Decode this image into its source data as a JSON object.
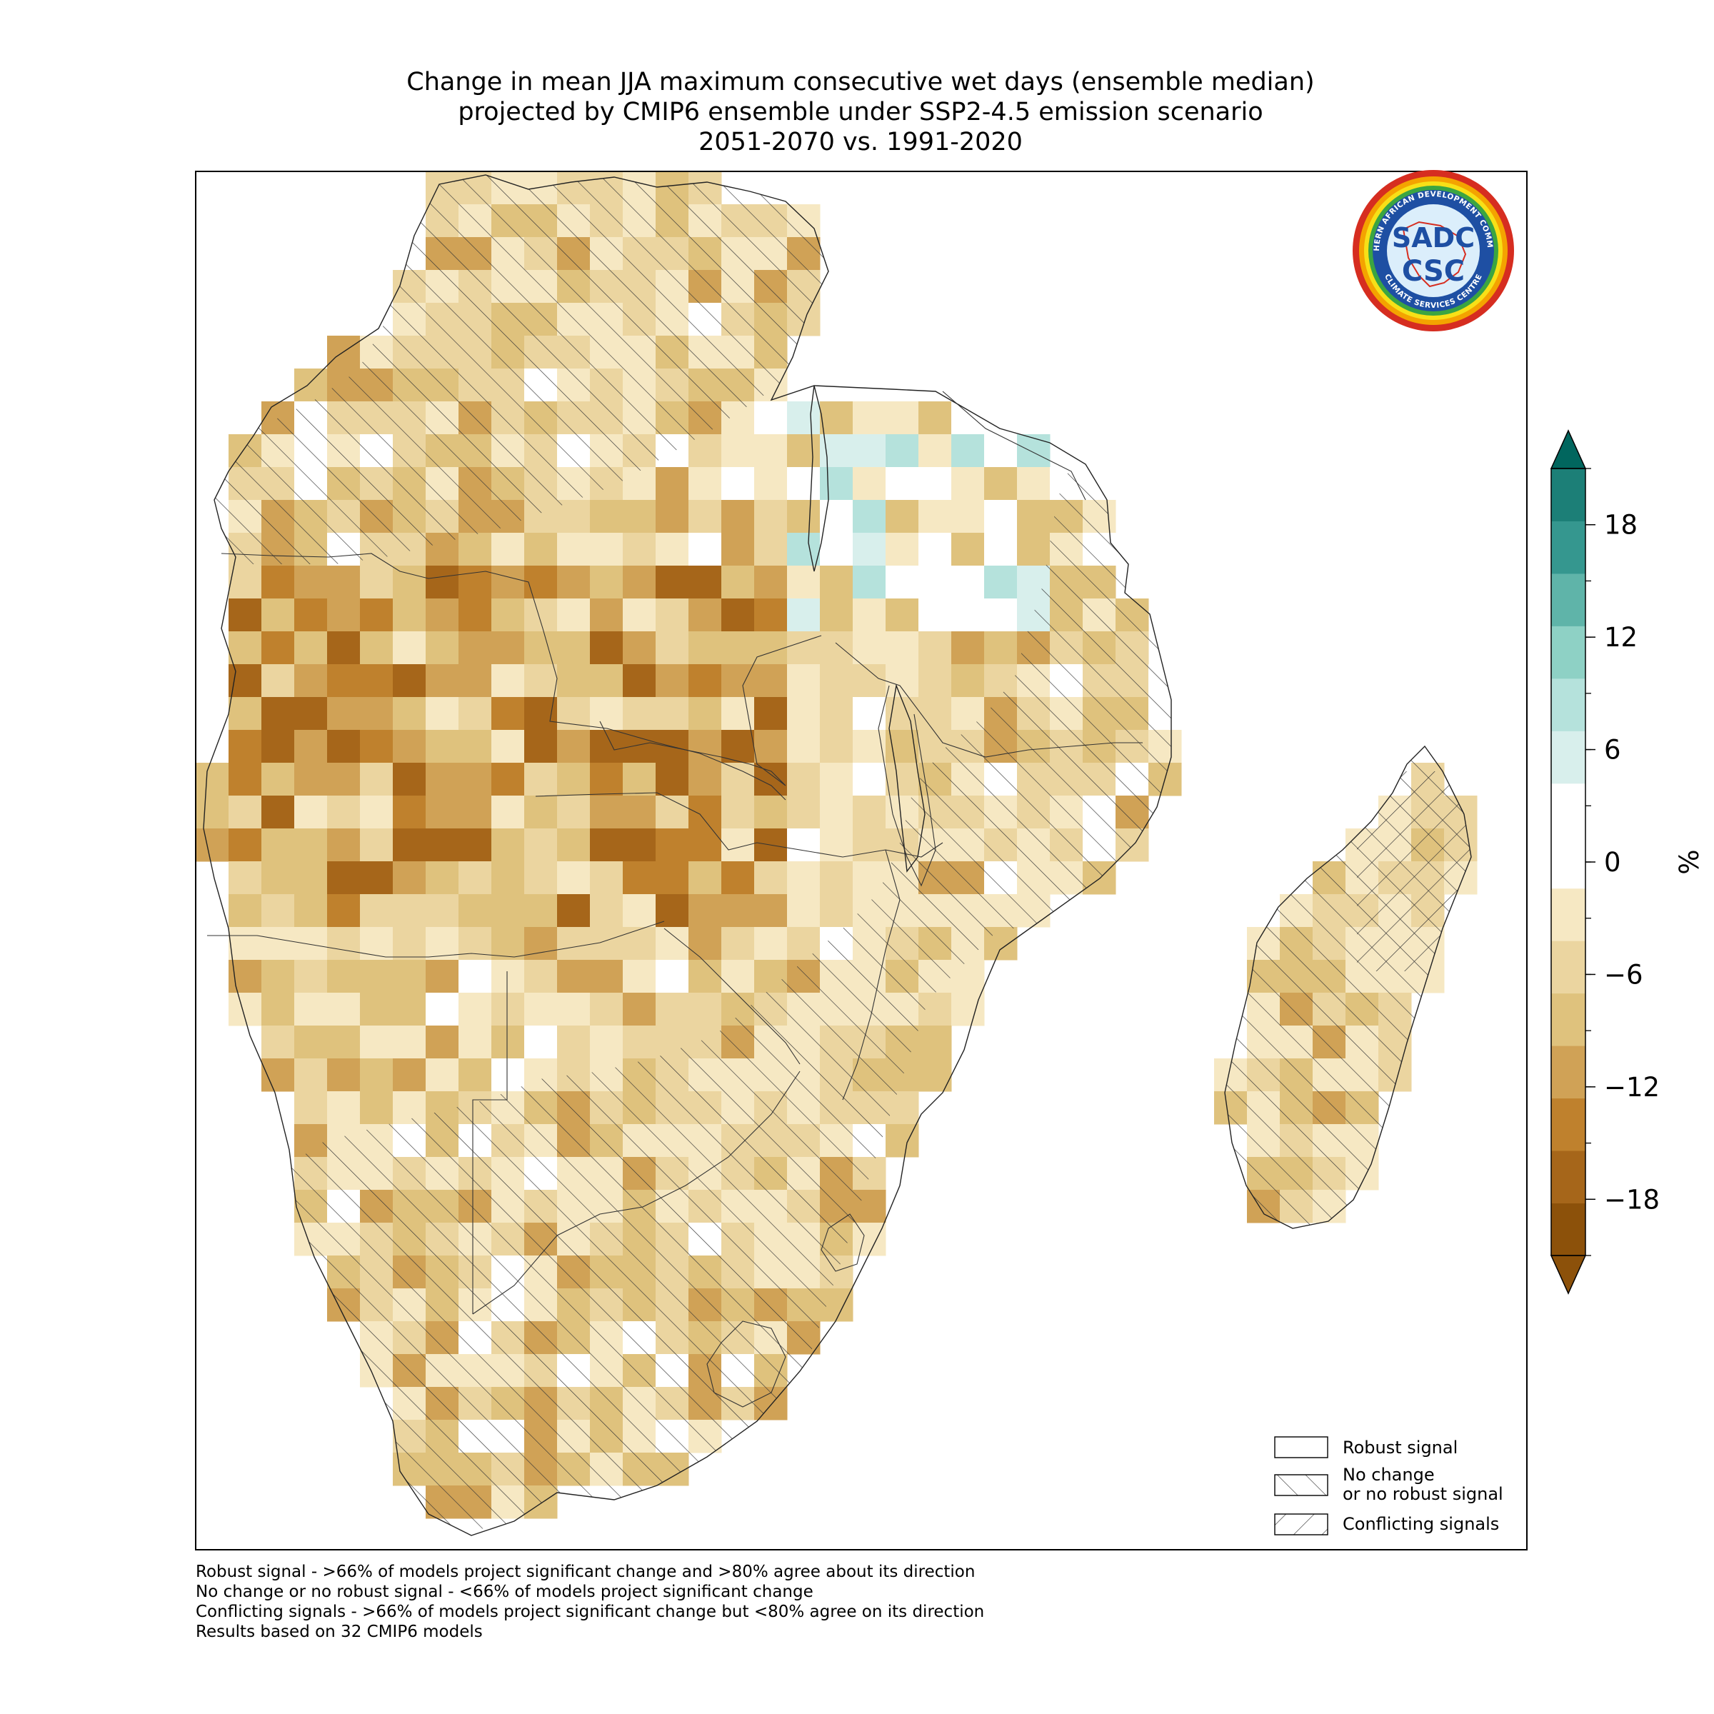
{
  "title": {
    "line1": "Change in mean JJA maximum consecutive wet days (ensemble median)",
    "line2": "projected by CMIP6 ensemble under SSP2-4.5 emission scenario",
    "line3": "2051-2070 vs. 1991-2020"
  },
  "colorbar": {
    "unit": "%",
    "ticks": [
      "18",
      "12",
      "6",
      "0",
      "−6",
      "−12",
      "−18"
    ],
    "tick_values": [
      18,
      12,
      6,
      0,
      -6,
      -12,
      -18
    ],
    "range": [
      -21,
      21
    ],
    "step": 3,
    "colors": [
      "#8c510a",
      "#a6661a",
      "#bf812d",
      "#d0a256",
      "#dfc27d",
      "#ebd5a0",
      "#f6e8c3",
      "#ffffff",
      "#ffffff",
      "#d8efec",
      "#b5e2dc",
      "#8ed1c5",
      "#5fb4a9",
      "#35978f",
      "#1c7f77"
    ],
    "extend_low": "#8c510a",
    "extend_high": "#01665e"
  },
  "legend": {
    "robust": "Robust signal",
    "no_change_1": "No change",
    "no_change_2": "or no robust signal",
    "conflicting": "Conflicting signals"
  },
  "notes": [
    "Robust signal - >66% of models project significant change and >80% agree about its direction",
    "No change or no robust signal - <66% of models project significant change",
    "Conflicting signals - >66% of models project significant change but <80% agree on its direction",
    "Results based on 32 CMIP6 models"
  ],
  "logo": {
    "top_text": "SOUTHERN AFRICAN DEVELOPMENT COMMUNITY",
    "bottom_text": "CLIMATE SERVICES CENTRE",
    "mark": "SADC",
    "mark_2": "CSC"
  },
  "map": {
    "region": "Southern Africa and Madagascar",
    "colors": {
      "teal_light": "#d8efec",
      "teal_mid": "#b5e2dc",
      "teal": "#8ed1c5",
      "tan_light": "#f6e8c3",
      "tan": "#ebd5a0",
      "tan_mid": "#dfc27d",
      "brown_light": "#d0a256",
      "brown": "#bf812d",
      "brown_dark": "#a6661a",
      "brown_darkest": "#8c510a"
    }
  }
}
